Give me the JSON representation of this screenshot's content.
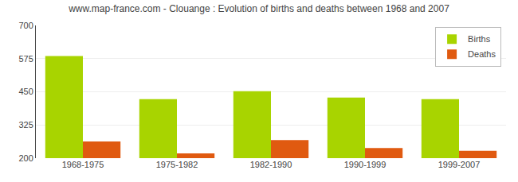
{
  "chart_data": {
    "type": "bar",
    "title": "www.map-france.com - Clouange : Evolution of births and deaths between 1968 and 2007",
    "categories": [
      "1968-1975",
      "1975-1982",
      "1982-1990",
      "1990-1999",
      "1999-2007"
    ],
    "series": [
      {
        "name": "Births",
        "color": "#a8d400",
        "values": [
          585,
          422,
          452,
          428,
          422
        ]
      },
      {
        "name": "Deaths",
        "color": "#e05a10",
        "values": [
          263,
          218,
          268,
          238,
          228
        ]
      }
    ],
    "ylim": [
      200,
      700
    ],
    "yticks": [
      200,
      325,
      450,
      575,
      700
    ],
    "grid": true,
    "legend": "upper right"
  }
}
